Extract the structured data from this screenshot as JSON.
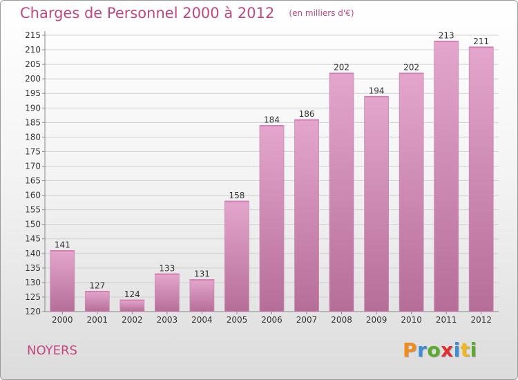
{
  "title": "Charges de Personnel 2000 à 2012",
  "subtitle": "(en milliers d'€)",
  "commune": "NOYERS",
  "logo": {
    "text": "Proxiti",
    "letters": [
      {
        "ch": "P",
        "color": "#f08c1c"
      },
      {
        "ch": "r",
        "color": "#3b8ed6"
      },
      {
        "ch": "o",
        "color": "#5aaa2e"
      },
      {
        "ch": "x",
        "color": "#e03030"
      },
      {
        "ch": "i",
        "color": "#3b8ed6"
      },
      {
        "ch": "t",
        "color": "#f0b81c"
      },
      {
        "ch": "i",
        "color": "#5aaa2e"
      }
    ]
  },
  "colors": {
    "accent": "#c2477f",
    "bar_top": "#e4a6cc",
    "bar_bottom": "#b56e98",
    "grid": "#d0d0d0",
    "axis_text": "#333333"
  },
  "chart_data": {
    "type": "bar",
    "categories": [
      "2000",
      "2001",
      "2002",
      "2003",
      "2004",
      "2005",
      "2006",
      "2007",
      "2008",
      "2009",
      "2010",
      "2011",
      "2012"
    ],
    "values": [
      141,
      127,
      124,
      133,
      131,
      158,
      184,
      186,
      202,
      194,
      202,
      213,
      211
    ],
    "value_labels": [
      "141",
      "127",
      "124",
      "133",
      "131",
      "158",
      "184",
      "186",
      "202",
      "194",
      "202",
      "213",
      "211"
    ],
    "yticks": [
      "120",
      "125",
      "130",
      "135",
      "140",
      "145",
      "150",
      "155",
      "160",
      "165",
      "170",
      "175",
      "180",
      "185",
      "190",
      "195",
      "200",
      "205",
      "210",
      "215"
    ],
    "title": "Charges de Personnel 2000 à 2012",
    "xlabel": "",
    "ylabel": "",
    "ylim": [
      120,
      215
    ],
    "grid": true,
    "legend": "none"
  }
}
